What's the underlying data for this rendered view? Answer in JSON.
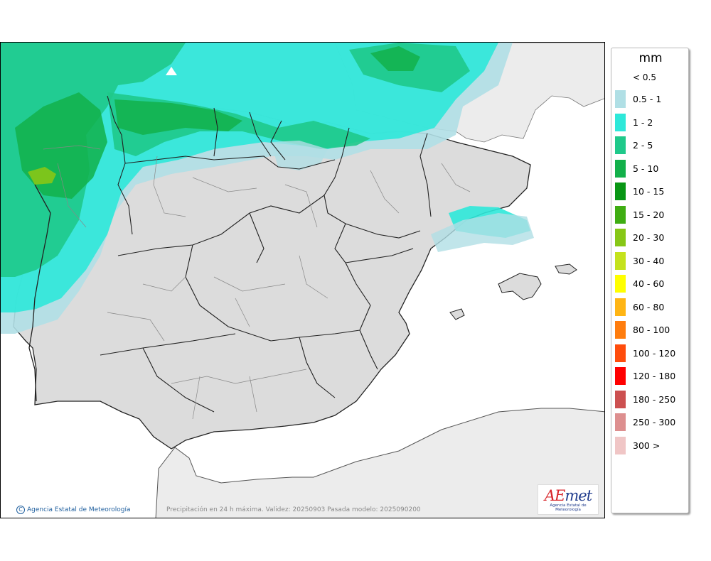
{
  "legend": {
    "unit": "mm",
    "under_label": "< 0.5",
    "items": [
      {
        "label": "0.5 - 1",
        "color": "#b0dfe5"
      },
      {
        "label": "1 - 2",
        "color": "#2ee8d9"
      },
      {
        "label": "2 - 5",
        "color": "#1fc98a"
      },
      {
        "label": "5 - 10",
        "color": "#12b04a"
      },
      {
        "label": "10 - 15",
        "color": "#089614"
      },
      {
        "label": "15 - 20",
        "color": "#3fad12"
      },
      {
        "label": "20 - 30",
        "color": "#87c716"
      },
      {
        "label": "30 - 40",
        "color": "#c4e21c"
      },
      {
        "label": "40 - 60",
        "color": "#ffff00"
      },
      {
        "label": "60 - 80",
        "color": "#ffb514"
      },
      {
        "label": "80 - 100",
        "color": "#ff7d0e"
      },
      {
        "label": "100 - 120",
        "color": "#ff4c0c"
      },
      {
        "label": "120 - 180",
        "color": "#ff0000"
      },
      {
        "label": "180 - 250",
        "color": "#cc5050"
      },
      {
        "label": "250 - 300",
        "color": "#dd8f8f"
      },
      {
        "label": "300 >",
        "color": "#f0c6c6"
      }
    ]
  },
  "map": {
    "credit": "Agencia Estatal de Meteorología",
    "caption": "Precipitación en 24 h máxima. Validez: 20250903 Pasada modelo: 2025090200",
    "logo": {
      "prefix": "AE",
      "suffix": "met",
      "subtitle": "Agencia Estatal de Meteorología"
    },
    "colors": {
      "land": "#dcdcdc",
      "sea": "#ffffff",
      "foreign_land": "#ececec",
      "border": "#222222"
    }
  }
}
